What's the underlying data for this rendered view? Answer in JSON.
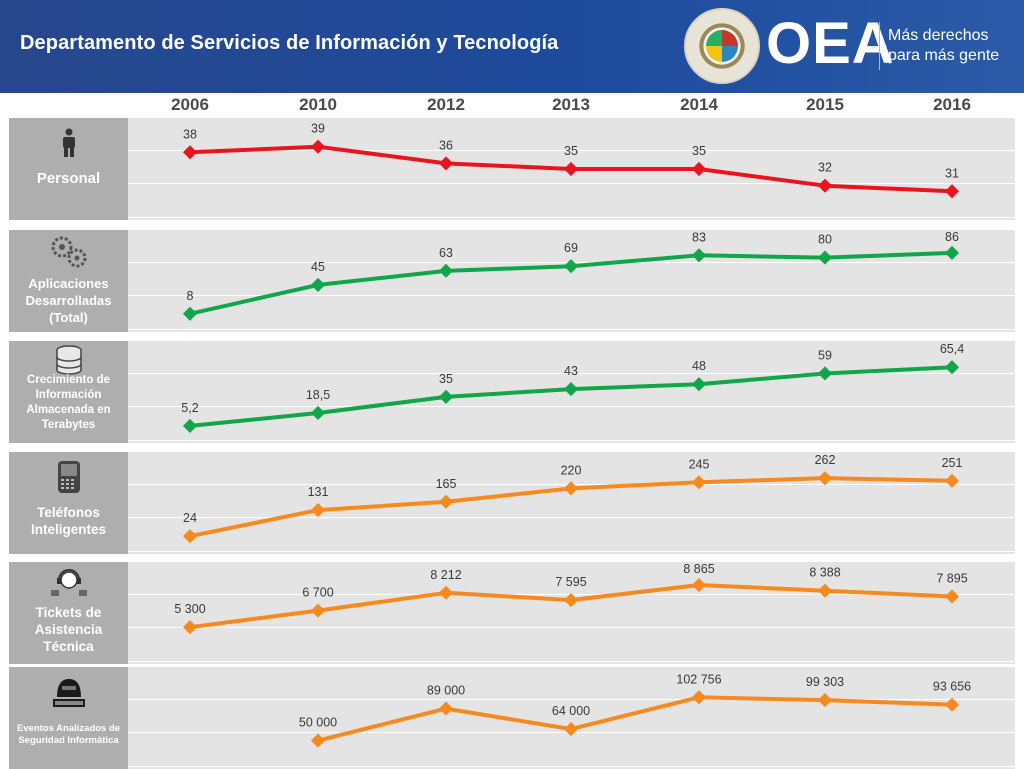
{
  "header": {
    "title": "Departamento de Servicios de Información y Tecnología",
    "logo_text": "OEA",
    "tagline_line1": "Más derechos",
    "tagline_line2": "para más gente"
  },
  "colors": {
    "red": "#e8141e",
    "green": "#12a64a",
    "orange": "#f7891e"
  },
  "chart_data": {
    "type": "line",
    "categories": [
      "2006",
      "2010",
      "2012",
      "2013",
      "2014",
      "2015",
      "2016"
    ],
    "series": [
      {
        "name": "Personal",
        "icon": "person-icon",
        "color": "#e8141e",
        "values": [
          38,
          39,
          36,
          35,
          35,
          32,
          31
        ],
        "labels": [
          "38",
          "39",
          "36",
          "35",
          "35",
          "32",
          "31"
        ],
        "ylim": [
          28,
          42
        ]
      },
      {
        "name": "Aplicaciones Desarrolladas (Total)",
        "icon": "gears-icon",
        "color": "#12a64a",
        "values": [
          8,
          45,
          63,
          69,
          83,
          80,
          86
        ],
        "labels": [
          "8",
          "45",
          "63",
          "69",
          "83",
          "80",
          "86"
        ],
        "ylim": [
          0,
          100
        ]
      },
      {
        "name": "Crecimiento de Información Almacenada en Terabytes",
        "icon": "database-icon",
        "color": "#12a64a",
        "values": [
          5.2,
          18.5,
          35,
          43,
          48,
          59,
          65.4
        ],
        "labels": [
          "5,2",
          "18,5",
          "35",
          "43",
          "48",
          "59",
          "65,4"
        ],
        "ylim": [
          0,
          80
        ]
      },
      {
        "name": "Teléfonos Inteligentes",
        "icon": "smartphone-icon",
        "color": "#f7891e",
        "values": [
          24,
          131,
          165,
          220,
          245,
          262,
          251
        ],
        "labels": [
          "24",
          "131",
          "165",
          "220",
          "245",
          "262",
          "251"
        ],
        "ylim": [
          0,
          320
        ]
      },
      {
        "name": "Tickets de Asistencia Técnica",
        "icon": "support-headset-icon",
        "color": "#f7891e",
        "values": [
          5300,
          6700,
          8212,
          7595,
          8865,
          8388,
          7895
        ],
        "labels": [
          "5 300",
          "6 700",
          "8 212",
          "7 595",
          "8 865",
          "8 388",
          "7 895"
        ],
        "ylim": [
          3200,
          9800
        ]
      },
      {
        "name": "Eventos Analizados de Seguridad Informática",
        "icon": "hacker-icon",
        "color": "#f7891e",
        "values": [
          null,
          50000,
          89000,
          64000,
          102756,
          99303,
          93656
        ],
        "labels": [
          "",
          "50 000",
          "89 000",
          "64 000",
          "102 756",
          "99 303",
          "93 656"
        ],
        "ylim": [
          30000,
          125000
        ]
      }
    ]
  }
}
